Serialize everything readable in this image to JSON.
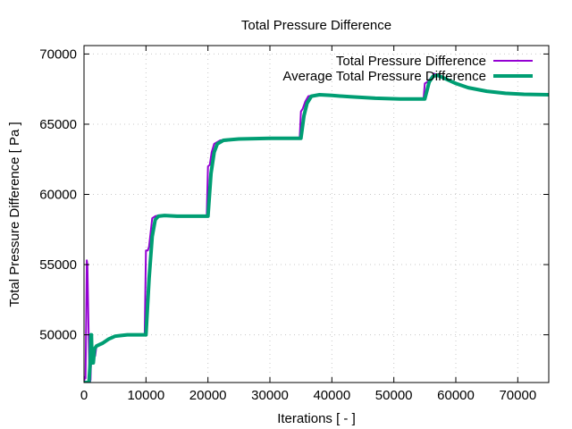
{
  "chart_data": {
    "type": "line",
    "title": "Total Pressure Difference",
    "xlabel": "Iterations [ - ]",
    "ylabel": "Total Pressure Difference [ Pa ]",
    "xlim": [
      0,
      75000
    ],
    "ylim": [
      46600,
      70600
    ],
    "xticks": [
      0,
      10000,
      20000,
      30000,
      40000,
      50000,
      60000,
      70000
    ],
    "yticks": [
      50000,
      55000,
      60000,
      65000,
      70000
    ],
    "grid": true,
    "legend_position": "top-right",
    "series": [
      {
        "name": "Total Pressure Difference",
        "color": "#9400d3",
        "line_width": 2,
        "points": [
          [
            0,
            46600
          ],
          [
            150,
            47000
          ],
          [
            250,
            46900
          ],
          [
            350,
            51000
          ],
          [
            450,
            55300
          ],
          [
            550,
            55000
          ],
          [
            650,
            52500
          ],
          [
            750,
            50000
          ],
          [
            850,
            47500
          ],
          [
            950,
            46600
          ],
          [
            1050,
            46800
          ],
          [
            1150,
            48500
          ],
          [
            1250,
            50000
          ],
          [
            1350,
            49000
          ],
          [
            1450,
            48200
          ],
          [
            1600,
            49000
          ],
          [
            1800,
            48500
          ],
          [
            2000,
            49200
          ],
          [
            2500,
            49300
          ],
          [
            3000,
            49400
          ],
          [
            4000,
            49700
          ],
          [
            5000,
            49900
          ],
          [
            6000,
            49950
          ],
          [
            7000,
            50000
          ],
          [
            8000,
            50000
          ],
          [
            9000,
            50000
          ],
          [
            9800,
            50000
          ],
          [
            10000,
            56000
          ],
          [
            10300,
            56000
          ],
          [
            10500,
            56300
          ],
          [
            10800,
            57500
          ],
          [
            11000,
            58300
          ],
          [
            11500,
            58450
          ],
          [
            12000,
            58500
          ],
          [
            13000,
            58500
          ],
          [
            14000,
            58480
          ],
          [
            16000,
            58450
          ],
          [
            18000,
            58450
          ],
          [
            19800,
            58450
          ],
          [
            20000,
            62000
          ],
          [
            20300,
            62100
          ],
          [
            20600,
            63000
          ],
          [
            21000,
            63600
          ],
          [
            22000,
            63850
          ],
          [
            24000,
            63950
          ],
          [
            27000,
            64000
          ],
          [
            30000,
            64000
          ],
          [
            33000,
            64000
          ],
          [
            34800,
            64000
          ],
          [
            35000,
            65900
          ],
          [
            35300,
            66100
          ],
          [
            35700,
            66600
          ],
          [
            36200,
            67000
          ],
          [
            37500,
            67100
          ],
          [
            40000,
            67050
          ],
          [
            43000,
            66950
          ],
          [
            47000,
            66850
          ],
          [
            51000,
            66800
          ],
          [
            54800,
            66800
          ],
          [
            55000,
            67900
          ],
          [
            55400,
            68000
          ],
          [
            56000,
            68300
          ],
          [
            56500,
            68600
          ],
          [
            57000,
            68500
          ],
          [
            58000,
            68300
          ],
          [
            60000,
            67900
          ],
          [
            62000,
            67600
          ],
          [
            65000,
            67350
          ],
          [
            68000,
            67200
          ],
          [
            71000,
            67130
          ],
          [
            75000,
            67100
          ]
        ]
      },
      {
        "name": "Average Total Pressure Difference",
        "color": "#009e73",
        "line_width": 4,
        "points": [
          [
            0,
            46600
          ],
          [
            800,
            46600
          ],
          [
            1000,
            48000
          ],
          [
            1100,
            50000
          ],
          [
            1200,
            50000
          ],
          [
            1300,
            48000
          ],
          [
            1500,
            48000
          ],
          [
            1700,
            49000
          ],
          [
            2000,
            49200
          ],
          [
            2500,
            49300
          ],
          [
            3000,
            49400
          ],
          [
            4000,
            49700
          ],
          [
            5000,
            49900
          ],
          [
            6000,
            49950
          ],
          [
            7000,
            50000
          ],
          [
            9000,
            50000
          ],
          [
            10000,
            50000
          ],
          [
            10500,
            54000
          ],
          [
            11000,
            57000
          ],
          [
            11500,
            58200
          ],
          [
            12000,
            58450
          ],
          [
            13000,
            58500
          ],
          [
            15000,
            58450
          ],
          [
            18000,
            58450
          ],
          [
            20000,
            58450
          ],
          [
            20500,
            61500
          ],
          [
            21000,
            63000
          ],
          [
            21500,
            63600
          ],
          [
            22500,
            63850
          ],
          [
            25000,
            63950
          ],
          [
            30000,
            64000
          ],
          [
            35000,
            64000
          ],
          [
            35500,
            65600
          ],
          [
            36000,
            66500
          ],
          [
            36700,
            67000
          ],
          [
            38000,
            67100
          ],
          [
            40000,
            67050
          ],
          [
            43000,
            66950
          ],
          [
            47000,
            66850
          ],
          [
            51000,
            66800
          ],
          [
            55000,
            66800
          ],
          [
            55700,
            68000
          ],
          [
            56300,
            68400
          ],
          [
            57000,
            68500
          ],
          [
            58000,
            68300
          ],
          [
            60000,
            67900
          ],
          [
            62000,
            67600
          ],
          [
            65000,
            67350
          ],
          [
            68000,
            67200
          ],
          [
            71000,
            67130
          ],
          [
            75000,
            67100
          ]
        ]
      }
    ]
  }
}
